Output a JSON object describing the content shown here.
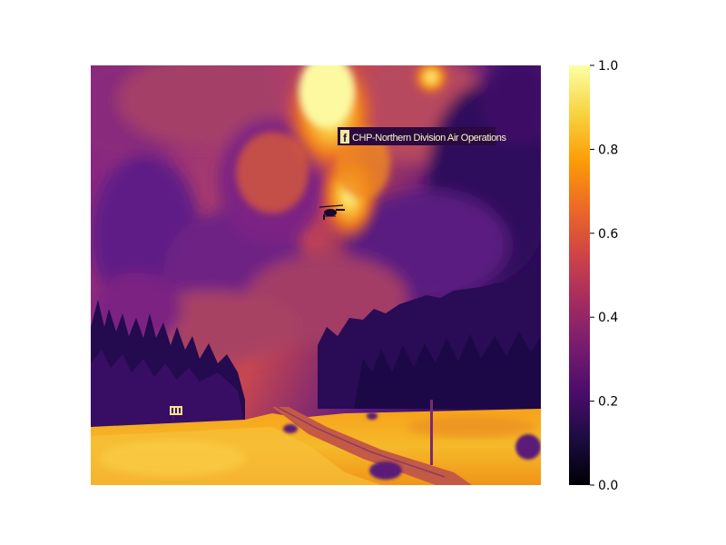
{
  "watermark": {
    "text": "CHP-Northern Division Air Operations",
    "icon": "facebook-icon"
  },
  "colormap": {
    "name": "inferno",
    "min": 0.0,
    "max": 1.0,
    "ticks": [
      "0.0",
      "0.2",
      "0.4",
      "0.6",
      "0.8",
      "1.0"
    ],
    "stops": [
      "#000004",
      "#1b0c41",
      "#4a0c6b",
      "#781c6d",
      "#a52c60",
      "#cf4446",
      "#ed6925",
      "#fb9b06",
      "#f7d13d",
      "#fcffa4"
    ]
  }
}
